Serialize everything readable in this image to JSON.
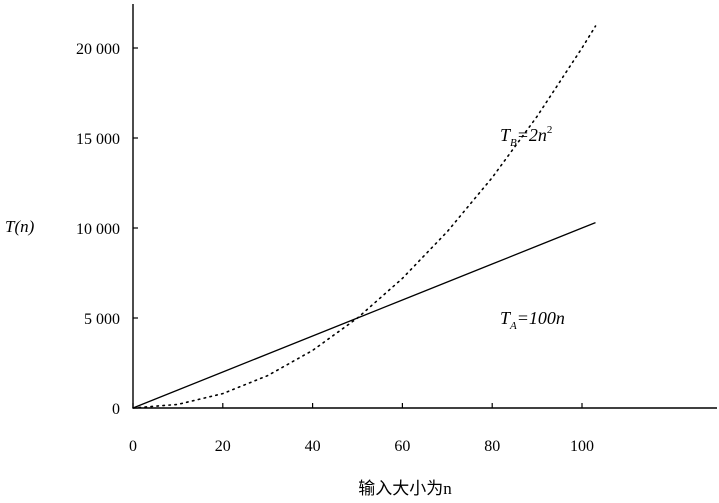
{
  "chart_data": {
    "type": "line",
    "xlabel": "输入大小为n",
    "ylabel": "T(n)",
    "xlim": [
      0,
      105
    ],
    "ylim": [
      0,
      22000
    ],
    "xticks": [
      0,
      20,
      40,
      60,
      80,
      100
    ],
    "xtick_labels": [
      "0",
      "20",
      "40",
      "60",
      "80",
      "100"
    ],
    "yticks": [
      0,
      5000,
      10000,
      15000,
      20000
    ],
    "ytick_labels": [
      "0",
      "5 000",
      "10 000",
      "15 000",
      "20 000"
    ],
    "grid": false,
    "series": [
      {
        "name": "T_A=100n",
        "label": {
          "T": "T",
          "sub": "A",
          "rest": "=100n"
        },
        "style": "solid",
        "x": [
          0,
          10,
          20,
          30,
          40,
          50,
          60,
          70,
          80,
          90,
          100,
          103
        ],
        "y": [
          0,
          1000,
          2000,
          3000,
          4000,
          5000,
          6000,
          7000,
          8000,
          9000,
          10000,
          10300
        ]
      },
      {
        "name": "T_B=2n^2",
        "label": {
          "T": "T",
          "sub": "B",
          "rest": "=2n",
          "sup": "2"
        },
        "style": "dotted",
        "x": [
          0,
          10,
          20,
          30,
          40,
          50,
          60,
          70,
          80,
          90,
          100,
          103
        ],
        "y": [
          0,
          200,
          800,
          1800,
          3200,
          5000,
          7200,
          9800,
          12800,
          16200,
          20000,
          21218
        ]
      }
    ]
  }
}
